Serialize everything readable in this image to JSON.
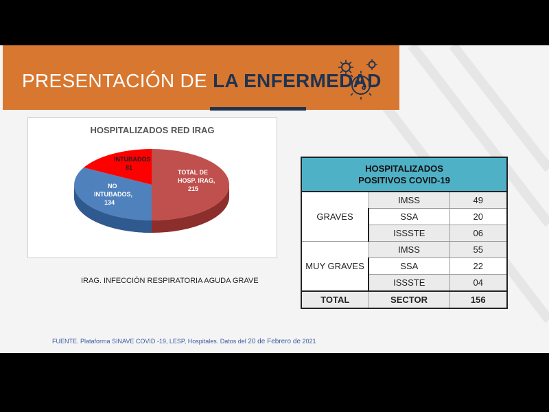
{
  "header": {
    "title_light": "PRESENTACIÓN DE ",
    "title_bold": "LA ENFERMEDAD",
    "banner_color": "#D8772F",
    "accent_color": "#1F3351"
  },
  "pie_chart": {
    "title": "HOSPITALIZADOS RED IRAG",
    "label_total_1": "TOTAL DE",
    "label_total_2": "HOSP. IRAG,",
    "label_total_3": "215",
    "label_no_1": "NO",
    "label_no_2": "INTUBADOS,",
    "label_no_3": "134",
    "label_int_1": "INTUBADOS",
    "label_int_2": "81",
    "note": "IRAG. INFECCIÓN RESPIRATORIA AGUDA GRAVE"
  },
  "chart_data": {
    "type": "pie",
    "title": "HOSPITALIZADOS RED IRAG",
    "slices": [
      {
        "label": "TOTAL DE HOSP. IRAG",
        "value": 215,
        "color": "#C0504D"
      },
      {
        "label": "NO INTUBADOS",
        "value": 134,
        "color": "#4F81BD"
      },
      {
        "label": "INTUBADOS",
        "value": 81,
        "color": "#FF0000"
      }
    ]
  },
  "table": {
    "header_line1": "HOSPITALIZADOS",
    "header_line2": "POSITIVOS COVID-19",
    "groups": [
      {
        "name": "GRAVES",
        "rows": [
          {
            "institution": "IMSS",
            "value": "49"
          },
          {
            "institution": "SSA",
            "value": "20"
          },
          {
            "institution": "ISSSTE",
            "value": "06"
          }
        ]
      },
      {
        "name": "MUY GRAVES",
        "rows": [
          {
            "institution": "IMSS",
            "value": "55"
          },
          {
            "institution": "SSA",
            "value": "22"
          },
          {
            "institution": "ISSSTE",
            "value": "04"
          }
        ]
      }
    ],
    "total_label": "TOTAL",
    "total_sector": "SECTOR",
    "total_value": "156",
    "header_color": "#4FB1C6"
  },
  "footer": {
    "source_a": "FUENTE. Plataforma SINAVE COVID -19, LESP, Hospitales. Datos del ",
    "source_b": "20 de Febrero de",
    "source_c": " 2021"
  }
}
